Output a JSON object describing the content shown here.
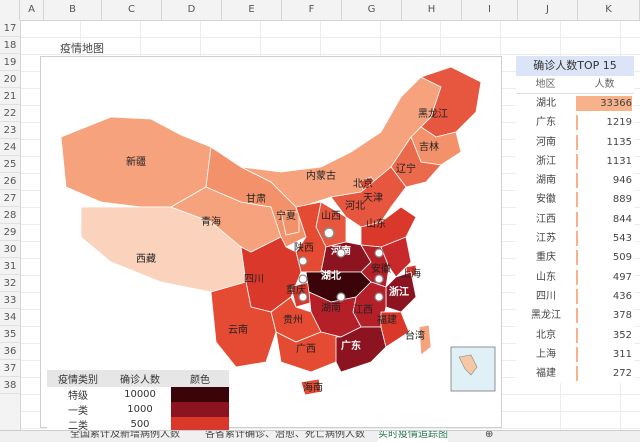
{
  "columns": [
    "A",
    "B",
    "C",
    "D",
    "E",
    "F",
    "G",
    "H",
    "I",
    "J",
    "K"
  ],
  "rows": [
    "17",
    "18",
    "19",
    "20",
    "21",
    "22",
    "23",
    "24",
    "25",
    "26",
    "27",
    "28",
    "29",
    "30",
    "31",
    "32",
    "33",
    "34",
    "35",
    "36",
    "37",
    "38"
  ],
  "map": {
    "title": "疫情地图",
    "provinces": [
      {
        "name": "新疆",
        "color": "#f6a27d"
      },
      {
        "name": "西藏",
        "color": "#fbd3bd"
      },
      {
        "name": "青海",
        "color": "#f6a27d"
      },
      {
        "name": "甘肃",
        "color": "#f3926a"
      },
      {
        "name": "内蒙古",
        "color": "#f6a27d"
      },
      {
        "name": "黑龙江",
        "color": "#e7563e"
      },
      {
        "name": "吉林",
        "color": "#f3926a"
      },
      {
        "name": "辽宁",
        "color": "#ec6a4c"
      },
      {
        "name": "北京",
        "color": "#e54b33"
      },
      {
        "name": "天津",
        "color": "#ec6a4c"
      },
      {
        "name": "河北",
        "color": "#e7563e"
      },
      {
        "name": "山西",
        "color": "#e7563e"
      },
      {
        "name": "宁夏",
        "color": "#f3926a"
      },
      {
        "name": "陕西",
        "color": "#e54b33"
      },
      {
        "name": "山东",
        "color": "#d9382b"
      },
      {
        "name": "河南",
        "color": "#8c1421"
      },
      {
        "name": "四川",
        "color": "#d9382b"
      },
      {
        "name": "重庆",
        "color": "#d9382b"
      },
      {
        "name": "湖北",
        "color": "#3a0408"
      },
      {
        "name": "安徽",
        "color": "#b41f28"
      },
      {
        "name": "江苏",
        "color": "#c82a2c"
      },
      {
        "name": "上海",
        "color": "#d9382b"
      },
      {
        "name": "浙江",
        "color": "#8c1421"
      },
      {
        "name": "江西",
        "color": "#b41f28"
      },
      {
        "name": "湖南",
        "color": "#b41f28"
      },
      {
        "name": "贵州",
        "color": "#e54b33"
      },
      {
        "name": "云南",
        "color": "#e54b33"
      },
      {
        "name": "广西",
        "color": "#e54b33"
      },
      {
        "name": "广东",
        "color": "#8c1421"
      },
      {
        "name": "福建",
        "color": "#d9382b"
      },
      {
        "name": "台湾",
        "color": "#f6a27d"
      },
      {
        "name": "海南",
        "color": "#e54b33"
      }
    ]
  },
  "legend": {
    "headers": [
      "疫情类别",
      "确诊人数",
      "颜色"
    ],
    "rows": [
      {
        "category": "特级",
        "count": "10000",
        "color": "#3a0408"
      },
      {
        "category": "一类",
        "count": "1000",
        "color": "#8c1421"
      },
      {
        "category": "二类",
        "count": "500",
        "color": "#d9382b"
      }
    ]
  },
  "top15": {
    "title": "确诊人数TOP 15",
    "col_region": "地区",
    "col_count": "人数",
    "rows": [
      {
        "region": "湖北",
        "count": "33366",
        "bar": 1.0
      },
      {
        "region": "广东",
        "count": "1219",
        "bar": 0.037
      },
      {
        "region": "河南",
        "count": "1135",
        "bar": 0.034
      },
      {
        "region": "浙江",
        "count": "1131",
        "bar": 0.034
      },
      {
        "region": "湖南",
        "count": "946",
        "bar": 0.028
      },
      {
        "region": "安徽",
        "count": "889",
        "bar": 0.027
      },
      {
        "region": "江西",
        "count": "844",
        "bar": 0.025
      },
      {
        "region": "江苏",
        "count": "543",
        "bar": 0.016
      },
      {
        "region": "重庆",
        "count": "509",
        "bar": 0.015
      },
      {
        "region": "山东",
        "count": "497",
        "bar": 0.015
      },
      {
        "region": "四川",
        "count": "436",
        "bar": 0.013
      },
      {
        "region": "黑龙江",
        "count": "378",
        "bar": 0.011
      },
      {
        "region": "北京",
        "count": "352",
        "bar": 0.011
      },
      {
        "region": "上海",
        "count": "311",
        "bar": 0.009
      },
      {
        "region": "福建",
        "count": "272",
        "bar": 0.008
      }
    ]
  },
  "tabs": [
    "全国累计及新增病例人数",
    "各省累计确诊、治愈、死亡病例人数",
    "实时疫情追踪图"
  ],
  "active_tab": "实时疫情追踪图"
}
